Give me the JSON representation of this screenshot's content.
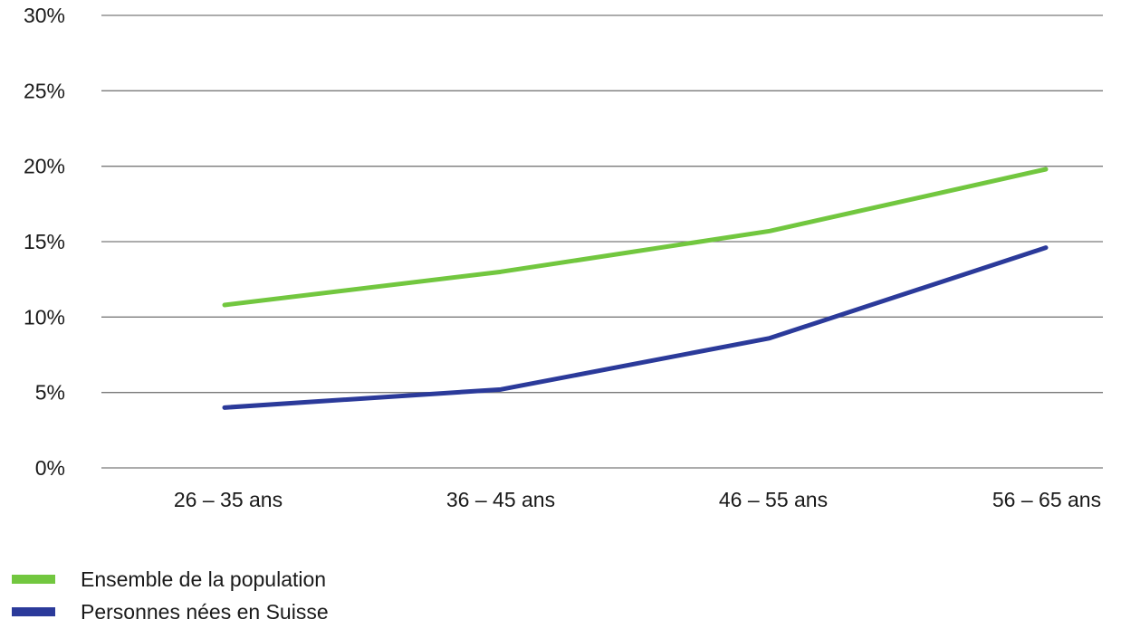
{
  "chart_data": {
    "type": "line",
    "categories": [
      "26 – 35 ans",
      "36 – 45 ans",
      "46 – 55 ans",
      "56 – 65 ans"
    ],
    "series": [
      {
        "name": "Ensemble de la population",
        "values": [
          10.8,
          13.0,
          15.7,
          19.8
        ],
        "color": "#72c73f"
      },
      {
        "name": "Personnes nées en Suisse",
        "values": [
          4.0,
          5.2,
          8.6,
          14.6
        ],
        "color": "#2b3a9a"
      }
    ],
    "yticks": [
      "0%",
      "5%",
      "10%",
      "15%",
      "20%",
      "25%",
      "30%"
    ],
    "ytick_values": [
      0,
      5,
      10,
      15,
      20,
      25,
      30
    ],
    "ylim": [
      0,
      30
    ],
    "grid": true,
    "legend_position": "bottom-left"
  }
}
